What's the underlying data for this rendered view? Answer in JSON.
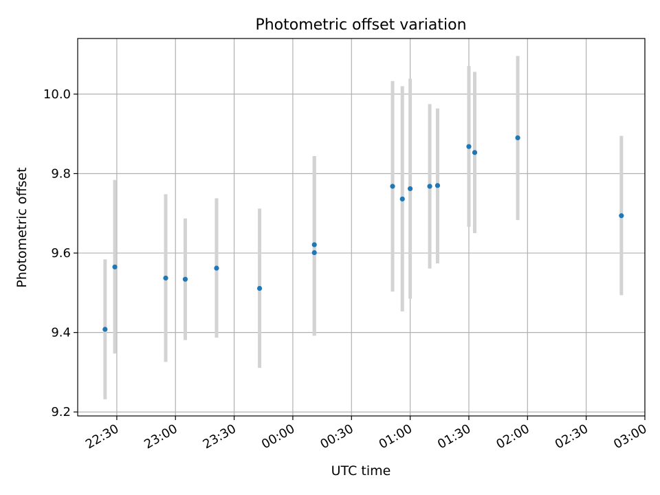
{
  "chart_data": {
    "type": "scatter",
    "title": "Photometric offset variation",
    "xlabel": "UTC time",
    "ylabel": "Photometric offset",
    "x_ticks": [
      "22:30",
      "23:00",
      "23:30",
      "00:00",
      "00:30",
      "01:00",
      "01:30",
      "02:00",
      "02:30",
      "03:00"
    ],
    "y_ticks": [
      "9.2",
      "9.4",
      "9.6",
      "9.8",
      "10.0"
    ],
    "xlim": [
      "22:10",
      "03:00"
    ],
    "ylim": [
      9.19,
      10.14
    ],
    "grid": true,
    "colors": {
      "point": "#1f77b4",
      "errorbar": "#d3d3d3",
      "grid": "#b0b0b0"
    },
    "points": [
      {
        "x": "22:24",
        "y": 9.408,
        "ylow": 9.232,
        "yhigh": 9.584
      },
      {
        "x": "22:29",
        "y": 9.565,
        "ylow": 9.347,
        "yhigh": 9.784
      },
      {
        "x": "22:55",
        "y": 9.537,
        "ylow": 9.326,
        "yhigh": 9.748
      },
      {
        "x": "23:05",
        "y": 9.534,
        "ylow": 9.381,
        "yhigh": 9.687
      },
      {
        "x": "23:21",
        "y": 9.562,
        "ylow": 9.387,
        "yhigh": 9.738
      },
      {
        "x": "23:43",
        "y": 9.511,
        "ylow": 9.311,
        "yhigh": 9.712
      },
      {
        "x": "00:11",
        "y": 9.601,
        "ylow": 9.392,
        "yhigh": 9.844
      },
      {
        "x": "00:11",
        "y": 9.621,
        "ylow": 9.392,
        "yhigh": 9.844
      },
      {
        "x": "00:51",
        "y": 9.768,
        "ylow": 9.503,
        "yhigh": 10.033
      },
      {
        "x": "00:56",
        "y": 9.736,
        "ylow": 9.453,
        "yhigh": 10.02
      },
      {
        "x": "01:00",
        "y": 9.762,
        "ylow": 9.485,
        "yhigh": 10.039
      },
      {
        "x": "01:10",
        "y": 9.768,
        "ylow": 9.561,
        "yhigh": 9.975
      },
      {
        "x": "01:14",
        "y": 9.77,
        "ylow": 9.574,
        "yhigh": 9.964
      },
      {
        "x": "01:30",
        "y": 9.868,
        "ylow": 9.666,
        "yhigh": 10.071
      },
      {
        "x": "01:33",
        "y": 9.853,
        "ylow": 9.65,
        "yhigh": 10.056
      },
      {
        "x": "01:55",
        "y": 9.89,
        "ylow": 9.683,
        "yhigh": 10.096
      },
      {
        "x": "02:48",
        "y": 9.694,
        "ylow": 9.494,
        "yhigh": 9.895
      }
    ]
  }
}
